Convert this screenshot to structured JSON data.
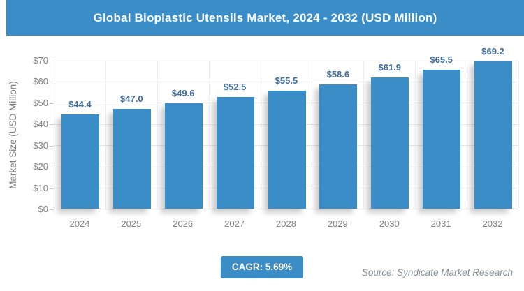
{
  "title": "Global Bioplastic Utensils Market, 2024 - 2032 (USD Million)",
  "colors": {
    "primary_blue": "#3A8DC7",
    "bar_label_blue": "#3F6D9C",
    "axis_text_gray": "#7F7F7F",
    "gridline_gray": "#E5E5E5",
    "source_gray": "#838F94"
  },
  "chart_data": {
    "type": "bar",
    "title": "Global Bioplastic Utensils Market, 2024 - 2032 (USD Million)",
    "categories": [
      "2024",
      "2025",
      "2026",
      "2027",
      "2028",
      "2029",
      "2030",
      "2031",
      "2032"
    ],
    "values": [
      44.4,
      47.0,
      49.6,
      52.5,
      55.5,
      58.6,
      61.9,
      65.5,
      69.2
    ],
    "bar_labels": [
      "$44.4",
      "$47.0",
      "$49.6",
      "$52.5",
      "$55.5",
      "$58.6",
      "$61.9",
      "$65.5",
      "$69.2"
    ],
    "xlabel": "",
    "ylabel": "Market Size (USD Million)",
    "ylim": [
      0,
      70
    ],
    "ytick_step": 10,
    "ytick_labels": [
      "$0",
      "$10",
      "$20",
      "$30",
      "$40",
      "$50",
      "$60",
      "$70"
    ],
    "grid": true,
    "legend": false,
    "bar_color": "#3A8DC7"
  },
  "footer": {
    "cagr_label": "CAGR: 5.69%",
    "source": "Source: Syndicate Market Research"
  }
}
